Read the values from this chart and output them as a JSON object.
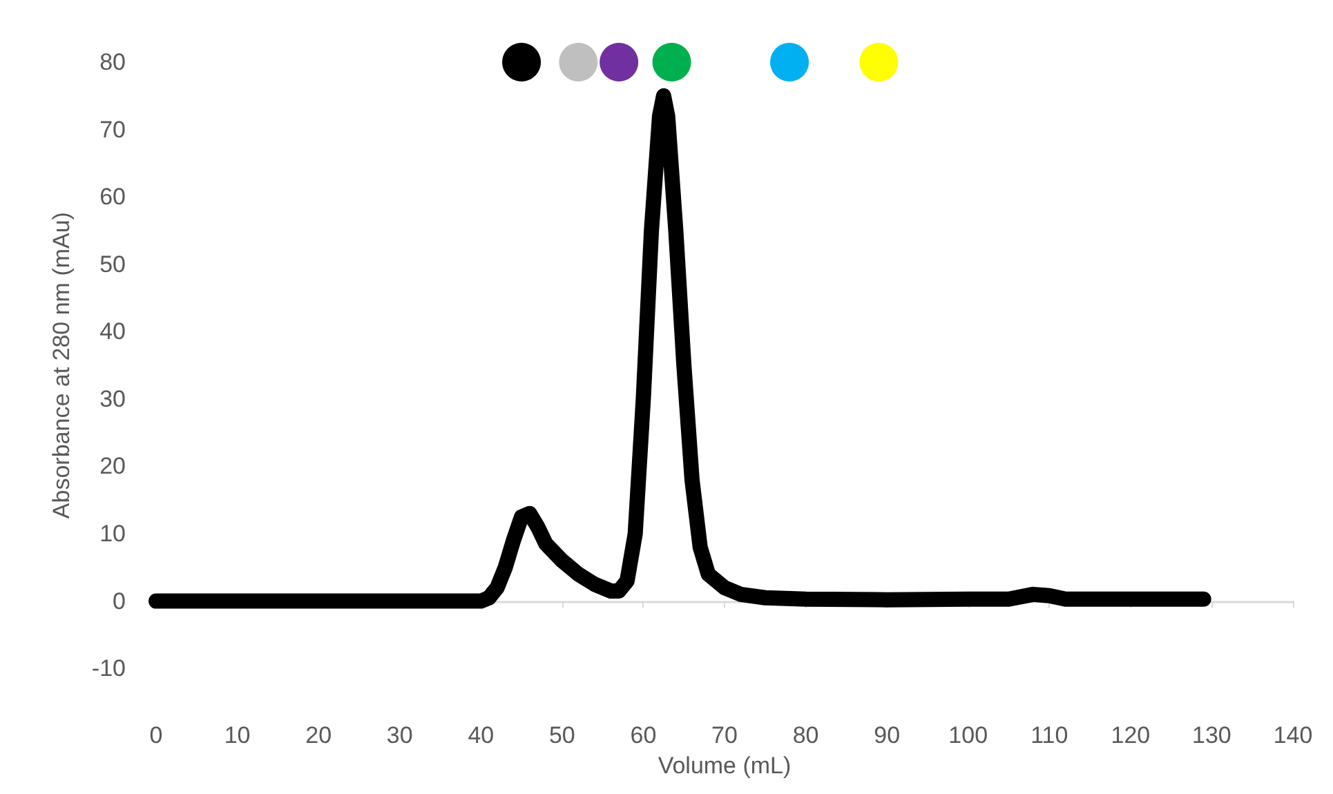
{
  "chart_data": {
    "type": "line",
    "xlabel": "Volume (mL)",
    "ylabel": "Absorbance at 280 nm (mAu)",
    "xlim": [
      0,
      140
    ],
    "xticks": [
      0,
      10,
      20,
      30,
      40,
      50,
      60,
      70,
      80,
      90,
      100,
      110,
      120,
      130,
      140
    ],
    "ylim": [
      -10,
      80
    ],
    "yticks": [
      -10,
      0,
      10,
      20,
      30,
      40,
      50,
      60,
      70,
      80
    ],
    "series": [
      {
        "color": "#000000",
        "x": [
          0,
          10,
          20,
          30,
          40,
          41,
          42,
          43,
          44,
          45,
          46,
          47,
          48,
          50,
          52,
          54,
          56,
          57,
          58,
          59,
          60,
          61,
          62,
          62.5,
          63,
          64,
          65,
          66,
          67,
          68,
          70,
          72,
          75,
          80,
          90,
          100,
          105,
          108,
          110,
          112,
          115,
          129
        ],
        "values": [
          0,
          0,
          0,
          0,
          0,
          0.5,
          2,
          5,
          9,
          12.5,
          13,
          11,
          8.5,
          6,
          4,
          2.5,
          1.5,
          1.5,
          3,
          10,
          30,
          55,
          72,
          75,
          72,
          55,
          35,
          18,
          8,
          4,
          2,
          1,
          0.5,
          0.3,
          0.2,
          0.3,
          0.3,
          1,
          0.8,
          0.3,
          0.3,
          0.3
        ]
      },
      {
        "type": "scatter",
        "marker": "circle",
        "x": [
          45,
          52,
          57,
          63.5,
          78,
          89
        ],
        "values": [
          80,
          80,
          80,
          80,
          80,
          80
        ],
        "colors": [
          "#000000",
          "#bfbfbf",
          "#7030a0",
          "#00b050",
          "#00b0f0",
          "#ffff00"
        ]
      }
    ]
  }
}
